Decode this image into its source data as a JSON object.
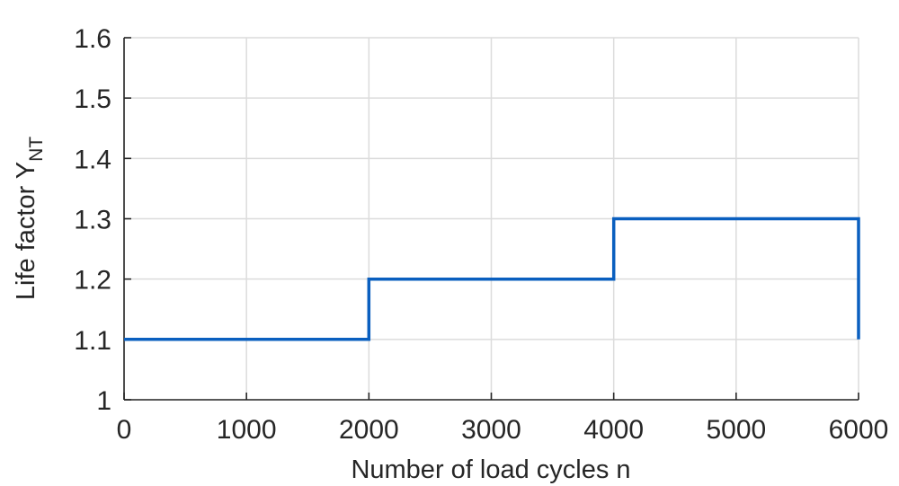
{
  "chart_data": {
    "type": "line",
    "step": true,
    "xlabel": "Number of load cycles n",
    "ylabel_main": "Life factor Y",
    "ylabel_sub": "NT",
    "xlim": [
      0,
      6000
    ],
    "ylim": [
      1,
      1.6
    ],
    "xticks": [
      "0",
      "1000",
      "2000",
      "3000",
      "4000",
      "5000",
      "6000"
    ],
    "yticks": [
      "1",
      "1.1",
      "1.2",
      "1.3",
      "1.4",
      "1.5",
      "1.6"
    ],
    "grid": true,
    "series": [
      {
        "x": [
          0,
          2000,
          2000,
          4000,
          4000,
          6000,
          6000
        ],
        "y": [
          1.1,
          1.1,
          1.2,
          1.2,
          1.3,
          1.3,
          1.1
        ],
        "color": "#0a5fbf"
      }
    ]
  }
}
